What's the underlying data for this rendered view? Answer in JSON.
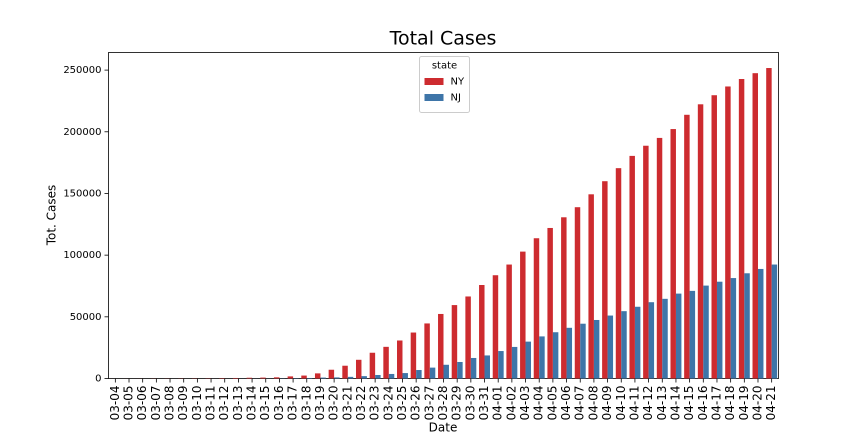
{
  "chart_data": {
    "type": "bar",
    "title": "Total Cases",
    "x_label": "Date",
    "y_label": "Tot. Cases",
    "categories": [
      "03-04",
      "03-05",
      "03-06",
      "03-07",
      "03-08",
      "03-09",
      "03-10",
      "03-11",
      "03-12",
      "03-13",
      "03-14",
      "03-15",
      "03-16",
      "03-17",
      "03-18",
      "03-19",
      "03-20",
      "03-21",
      "03-22",
      "03-23",
      "03-24",
      "03-25",
      "03-26",
      "03-27",
      "03-28",
      "03-29",
      "03-30",
      "03-31",
      "04-01",
      "04-02",
      "04-03",
      "04-04",
      "04-05",
      "04-06",
      "04-07",
      "04-08",
      "04-09",
      "04-10",
      "04-11",
      "04-12",
      "04-13",
      "04-14",
      "04-15",
      "04-16",
      "04-17",
      "04-18",
      "04-19",
      "04-20",
      "04-21"
    ],
    "series": [
      {
        "name": "NY",
        "color": "#cd2b2f",
        "values": [
          11,
          22,
          44,
          89,
          106,
          142,
          173,
          217,
          326,
          421,
          610,
          732,
          950,
          1700,
          2382,
          4152,
          7102,
          10356,
          15168,
          20875,
          25665,
          30811,
          37258,
          44635,
          52318,
          59513,
          66497,
          75795,
          83712,
          92381,
          102863,
          113704,
          122031,
          130689,
          138863,
          149316,
          159937,
          170512,
          180458,
          188694,
          195031,
          202208,
          213779,
          222284,
          229642,
          236732,
          242786,
          247512,
          251690
        ]
      },
      {
        "name": "NJ",
        "color": "#3e75a8",
        "values": [
          1,
          2,
          4,
          4,
          6,
          11,
          15,
          23,
          29,
          50,
          69,
          98,
          178,
          267,
          427,
          742,
          890,
          1327,
          1914,
          2844,
          3675,
          4402,
          6876,
          8825,
          11124,
          13386,
          16636,
          18696,
          22255,
          25590,
          29895,
          34124,
          37505,
          41090,
          44416,
          47437,
          51027,
          54588,
          58151,
          61850,
          64584,
          68824,
          71030,
          75317,
          78467,
          81420,
          85301,
          88806,
          92387
        ]
      }
    ],
    "ylim": [
      0,
      264275
    ],
    "yticks": [
      0,
      50000,
      100000,
      150000,
      200000,
      250000
    ],
    "legend_title": "state",
    "legend_position": "upper center"
  }
}
